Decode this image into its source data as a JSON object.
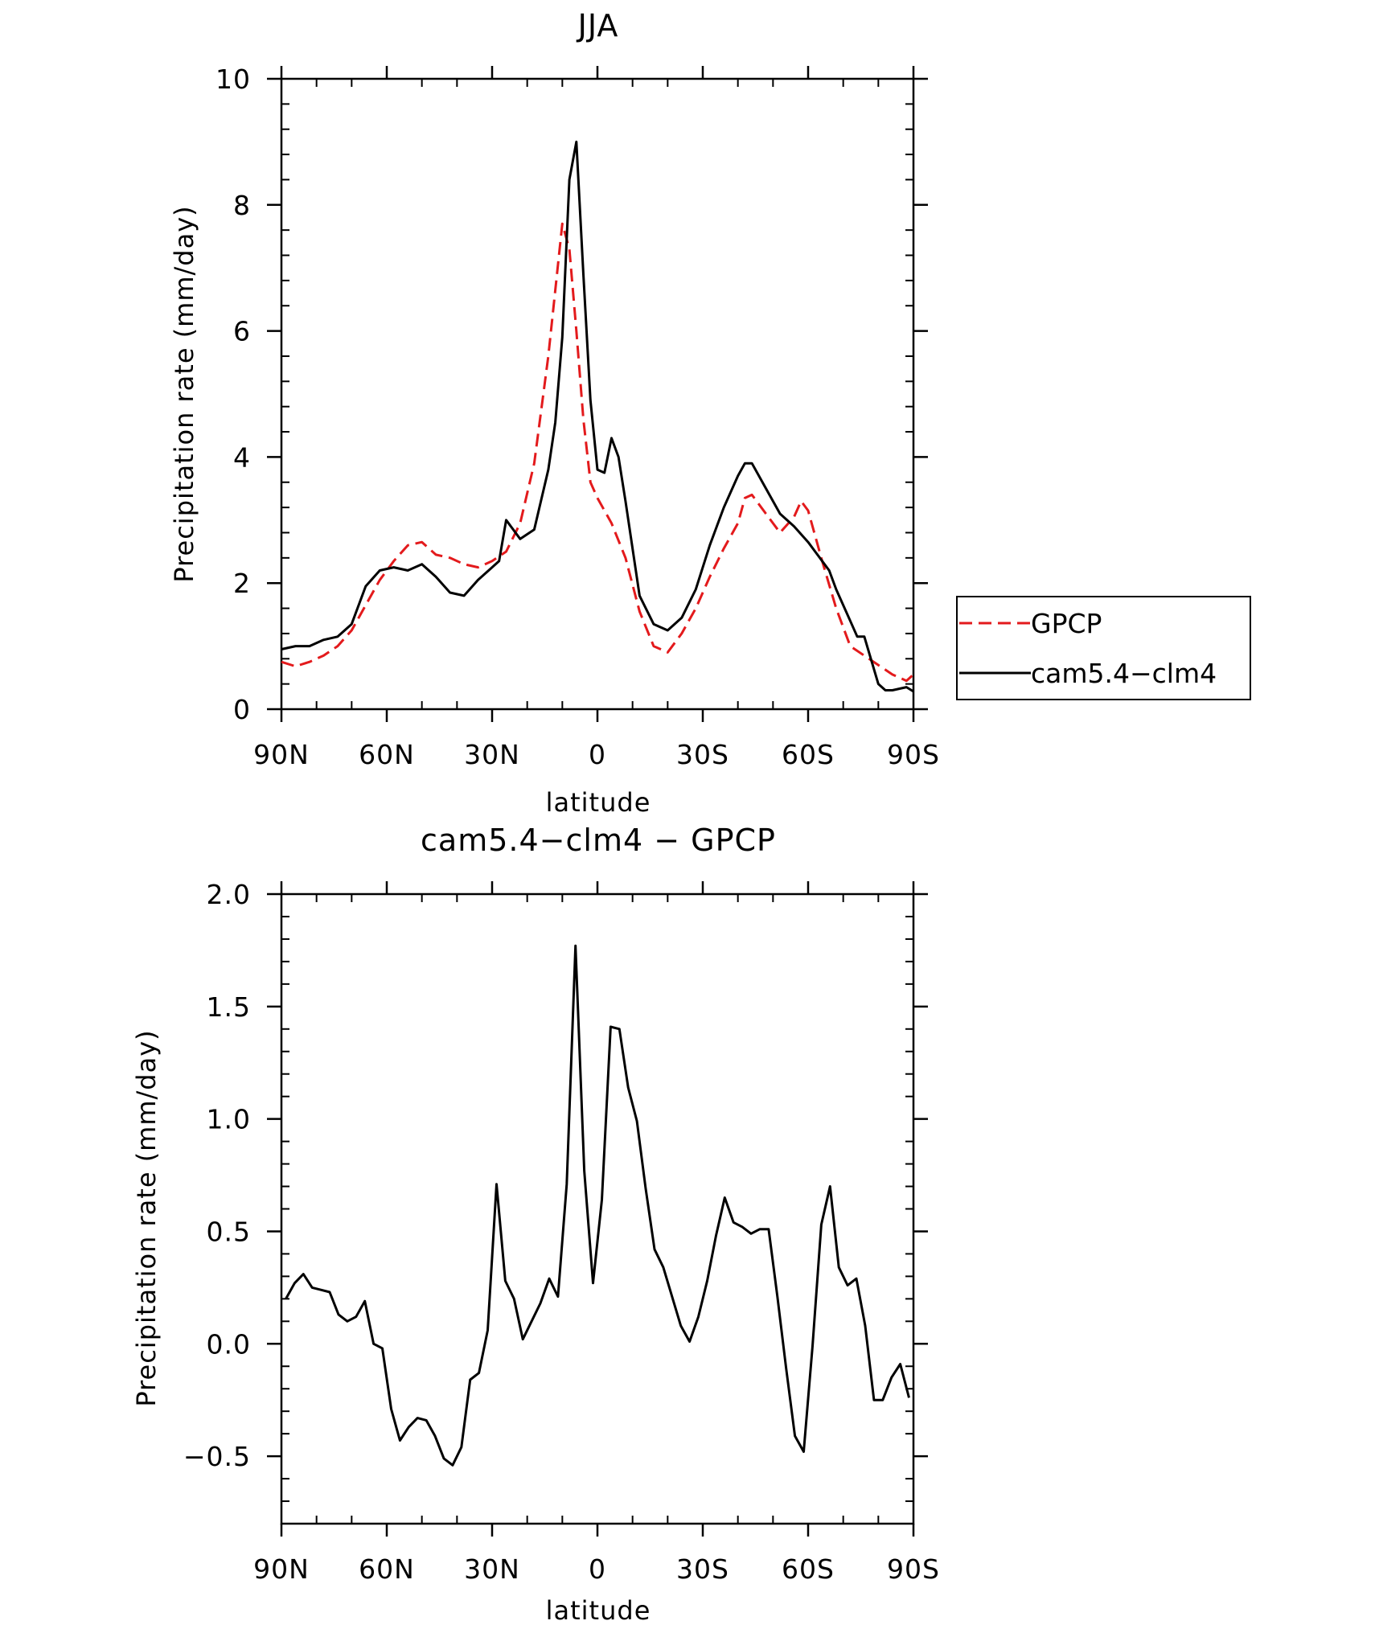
{
  "chart_data": [
    {
      "type": "line",
      "title": "JJA",
      "xlabel": "latitude",
      "ylabel": "Precipitation rate (mm/day)",
      "xlim": [
        -90,
        90
      ],
      "ylim": [
        0,
        10
      ],
      "xticks": [
        -90,
        -60,
        -30,
        0,
        30,
        60,
        90
      ],
      "xtick_labels": [
        "90N",
        "60N",
        "30N",
        "0",
        "30S",
        "60S",
        "90S"
      ],
      "yticks": [
        0,
        2,
        4,
        6,
        8,
        10
      ],
      "ytick_labels": [
        "0",
        "2",
        "4",
        "6",
        "8",
        "10"
      ],
      "legend": {
        "placement": "right",
        "entries": [
          {
            "label": "GPCP",
            "color": "#e31a1c",
            "style": "dashed"
          },
          {
            "label": "cam5.4−clm4",
            "color": "#000000",
            "style": "solid"
          }
        ]
      },
      "series": [
        {
          "name": "GPCP",
          "color": "#e31a1c",
          "style": "dashed",
          "x": [
            -90,
            -86,
            -82,
            -78,
            -74,
            -70,
            -66,
            -62,
            -58,
            -54,
            -50,
            -46,
            -42,
            -38,
            -34,
            -30,
            -26,
            -22,
            -18,
            -14,
            -10,
            -8,
            -6,
            -4,
            -2,
            0,
            4,
            8,
            12,
            16,
            20,
            24,
            28,
            32,
            36,
            40,
            42,
            44,
            48,
            52,
            56,
            58,
            60,
            64,
            68,
            72,
            76,
            80,
            84,
            88,
            90
          ],
          "y": [
            0.75,
            0.68,
            0.75,
            0.85,
            1.0,
            1.25,
            1.65,
            2.05,
            2.35,
            2.6,
            2.65,
            2.45,
            2.4,
            2.3,
            2.25,
            2.35,
            2.5,
            2.95,
            3.9,
            5.6,
            7.7,
            7.3,
            6.0,
            4.6,
            3.6,
            3.35,
            2.95,
            2.4,
            1.55,
            1.0,
            0.9,
            1.2,
            1.6,
            2.1,
            2.55,
            2.95,
            3.35,
            3.4,
            3.1,
            2.8,
            3.05,
            3.3,
            3.15,
            2.35,
            1.6,
            1.0,
            0.85,
            0.7,
            0.55,
            0.45,
            0.55
          ]
        },
        {
          "name": "cam5.4−clm4",
          "color": "#000000",
          "style": "solid",
          "x": [
            -90,
            -86,
            -82,
            -78,
            -74,
            -70,
            -66,
            -62,
            -58,
            -54,
            -50,
            -46,
            -42,
            -38,
            -34,
            -30,
            -28,
            -26,
            -22,
            -18,
            -14,
            -12,
            -10,
            -8,
            -6,
            -4,
            -2,
            0,
            2,
            4,
            6,
            8,
            12,
            16,
            20,
            24,
            28,
            32,
            36,
            40,
            42,
            44,
            48,
            52,
            56,
            60,
            64,
            66,
            68,
            72,
            74,
            76,
            80,
            82,
            84,
            88,
            90
          ],
          "y": [
            0.95,
            1.0,
            1.0,
            1.1,
            1.15,
            1.35,
            1.95,
            2.2,
            2.25,
            2.2,
            2.3,
            2.1,
            1.85,
            1.8,
            2.05,
            2.25,
            2.35,
            3.0,
            2.7,
            2.85,
            3.8,
            4.55,
            5.9,
            8.4,
            9.0,
            6.9,
            4.9,
            3.8,
            3.75,
            4.3,
            4.0,
            3.3,
            1.8,
            1.35,
            1.25,
            1.45,
            1.9,
            2.6,
            3.2,
            3.7,
            3.9,
            3.9,
            3.5,
            3.1,
            2.9,
            2.65,
            2.35,
            2.2,
            1.9,
            1.4,
            1.15,
            1.15,
            0.4,
            0.3,
            0.3,
            0.35,
            0.28
          ]
        }
      ]
    },
    {
      "type": "line",
      "title": "cam5.4−clm4 − GPCP",
      "xlabel": "latitude",
      "ylabel": "Precipitation rate (mm/day)",
      "xlim": [
        -90,
        90
      ],
      "ylim": [
        -0.8,
        2.0
      ],
      "xticks": [
        -90,
        -60,
        -30,
        0,
        30,
        60,
        90
      ],
      "xtick_labels": [
        "90N",
        "60N",
        "30N",
        "0",
        "30S",
        "60S",
        "90S"
      ],
      "yticks": [
        -0.5,
        0.0,
        0.5,
        1.0,
        1.5,
        2.0
      ],
      "ytick_labels": [
        "−0.5",
        "0.0",
        "0.5",
        "1.0",
        "1.5",
        "2.0"
      ],
      "series": [
        {
          "name": "cam5.4−clm4 − GPCP",
          "color": "#000000",
          "style": "solid",
          "x": [
            -88.75,
            -86.25,
            -83.75,
            -81.25,
            -78.75,
            -76.25,
            -73.75,
            -71.25,
            -68.75,
            -66.25,
            -63.75,
            -61.25,
            -58.75,
            -56.25,
            -53.75,
            -51.25,
            -48.75,
            -46.25,
            -43.75,
            -41.25,
            -38.75,
            -36.25,
            -33.75,
            -31.25,
            -28.75,
            -26.25,
            -23.75,
            -21.25,
            -18.75,
            -16.25,
            -13.75,
            -11.25,
            -8.75,
            -6.25,
            -3.75,
            -1.25,
            1.25,
            3.75,
            6.25,
            8.75,
            11.25,
            13.75,
            16.25,
            18.75,
            21.25,
            23.75,
            26.25,
            28.75,
            31.25,
            33.75,
            36.25,
            38.75,
            41.25,
            43.75,
            46.25,
            48.75,
            51.25,
            53.75,
            56.25,
            58.75,
            61.25,
            63.75,
            66.25,
            68.75,
            71.25,
            73.75,
            76.25,
            78.75,
            81.25,
            83.75,
            86.25,
            88.75
          ],
          "y": [
            0.2,
            0.27,
            0.31,
            0.25,
            0.24,
            0.23,
            0.13,
            0.1,
            0.12,
            0.19,
            0.0,
            -0.02,
            -0.29,
            -0.43,
            -0.37,
            -0.33,
            -0.34,
            -0.41,
            -0.51,
            -0.54,
            -0.46,
            -0.16,
            -0.13,
            0.06,
            0.71,
            0.28,
            0.2,
            0.02,
            0.1,
            0.18,
            0.29,
            0.21,
            0.71,
            1.77,
            0.77,
            0.27,
            0.64,
            1.41,
            1.4,
            1.14,
            0.99,
            0.69,
            0.42,
            0.34,
            0.21,
            0.08,
            0.01,
            0.12,
            0.28,
            0.48,
            0.65,
            0.54,
            0.52,
            0.49,
            0.51,
            0.51,
            0.21,
            -0.11,
            -0.41,
            -0.48,
            -0.01,
            0.53,
            0.7,
            0.34,
            0.26,
            0.29,
            0.08,
            -0.25,
            -0.25,
            -0.15,
            -0.09,
            -0.24
          ]
        }
      ]
    }
  ]
}
